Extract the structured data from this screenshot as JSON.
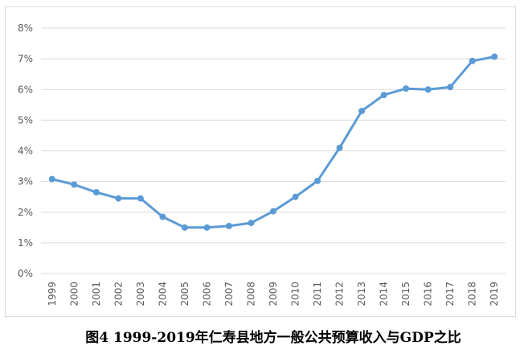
{
  "caption": "图4 1999-2019年仁寿县地方一般公共预算收入与GDP之比",
  "colors": {
    "series": "#5b9bd5",
    "grid": "#d9d9d9",
    "tick_text": "#595959"
  },
  "chart_data": {
    "type": "line",
    "title": "",
    "xlabel": "",
    "ylabel": "",
    "ylim": [
      0,
      8
    ],
    "y_unit": "%",
    "yticks": [
      "0%",
      "1%",
      "2%",
      "3%",
      "4%",
      "5%",
      "6%",
      "7%",
      "8%"
    ],
    "grid": true,
    "legend": "none",
    "categories": [
      "1999",
      "2000",
      "2001",
      "2002",
      "2003",
      "2004",
      "2005",
      "2006",
      "2007",
      "2008",
      "2009",
      "2010",
      "2011",
      "2012",
      "2013",
      "2014",
      "2015",
      "2016",
      "2017",
      "2018",
      "2019"
    ],
    "series": [
      {
        "values": [
          3.08,
          2.9,
          2.65,
          2.45,
          2.45,
          1.85,
          1.5,
          1.5,
          1.55,
          1.65,
          2.03,
          2.5,
          3.02,
          4.1,
          5.3,
          5.82,
          6.03,
          6.0,
          6.08,
          6.93,
          7.07
        ]
      }
    ]
  }
}
